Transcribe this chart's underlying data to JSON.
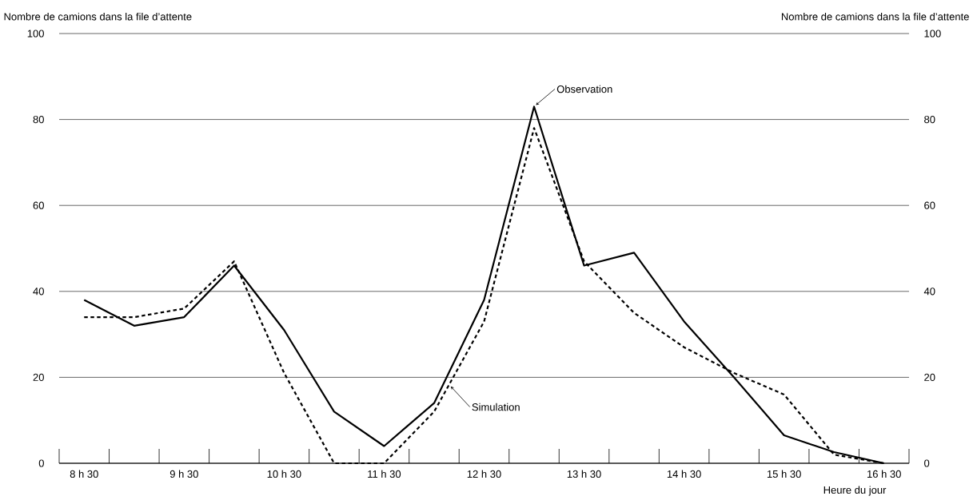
{
  "chart_data": {
    "type": "line",
    "ylabel": "Nombre de camions dans la file d’attente",
    "y2label": "Nombre de camions dans la file d’attente",
    "xlabel": "Heure du jour",
    "categories": [
      "8 h 30",
      null,
      "9 h 30",
      null,
      "10 h 30",
      null,
      "11 h 30",
      null,
      "12 h 30",
      null,
      "13 h 30",
      null,
      "14 h 30",
      null,
      "15 h 30",
      null,
      "16 h 30"
    ],
    "series": [
      {
        "name": "Observation",
        "color": "#000000",
        "line_style": "solid",
        "values": [
          38,
          32,
          34,
          46,
          31,
          12,
          4,
          14,
          38,
          83,
          46,
          49,
          33,
          20,
          6.5,
          2.6,
          0
        ]
      },
      {
        "name": "Simulation",
        "color": "#000000",
        "line_style": "dashed",
        "values": [
          34,
          34,
          36,
          47,
          21,
          0,
          0,
          12,
          33,
          78,
          47,
          35,
          27,
          21,
          16,
          2,
          0
        ]
      }
    ],
    "ylim": [
      0,
      100
    ],
    "yticks": [
      0,
      20,
      40,
      60,
      80,
      100
    ],
    "y2lim": [
      0,
      100
    ],
    "y2ticks": [
      0,
      20,
      40,
      60,
      80,
      100
    ],
    "grid": "y"
  }
}
